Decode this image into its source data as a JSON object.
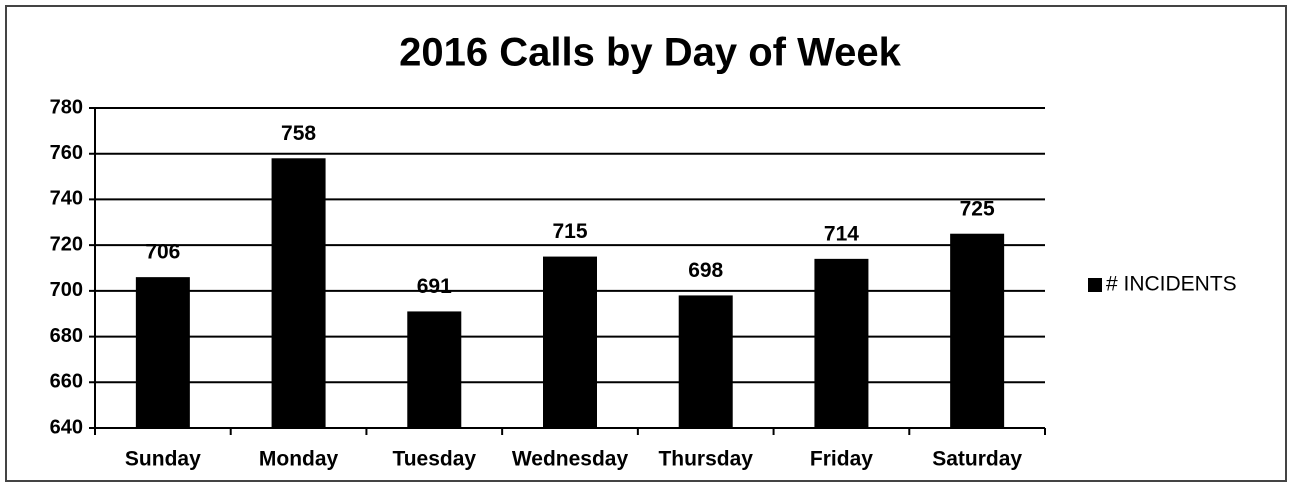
{
  "chart_data": {
    "type": "bar",
    "title": "2016 Calls by Day of Week",
    "categories": [
      "Sunday",
      "Monday",
      "Tuesday",
      "Wednesday",
      "Thursday",
      "Friday",
      "Saturday"
    ],
    "series": [
      {
        "name": "# INCIDENTS",
        "color": "#000000",
        "values": [
          706,
          758,
          691,
          715,
          698,
          714,
          725
        ]
      }
    ],
    "ylim": [
      640,
      780
    ],
    "yticks": [
      640,
      660,
      680,
      700,
      720,
      740,
      760,
      780
    ],
    "grid": true,
    "legend": "right"
  }
}
